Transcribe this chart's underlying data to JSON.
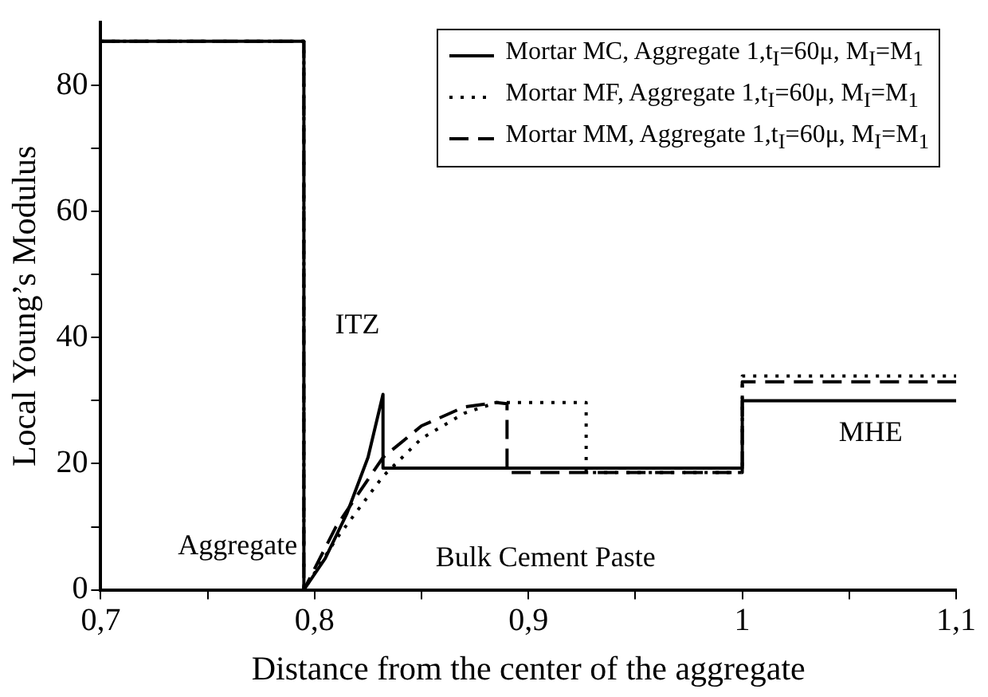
{
  "chart_data": {
    "type": "line",
    "xlabel": "Distance from the center of the aggregate",
    "ylabel": "Local Young’s Modulus",
    "xlim": [
      0.7,
      1.1
    ],
    "ylim": [
      0,
      90
    ],
    "xticks": [
      {
        "value": 0.7,
        "label": "0,7"
      },
      {
        "value": 0.75,
        "label": null
      },
      {
        "value": 0.8,
        "label": "0,8"
      },
      {
        "value": 0.85,
        "label": null
      },
      {
        "value": 0.9,
        "label": "0,9"
      },
      {
        "value": 0.95,
        "label": null
      },
      {
        "value": 1.0,
        "label": "1"
      },
      {
        "value": 1.05,
        "label": null
      },
      {
        "value": 1.1,
        "label": "1,1"
      }
    ],
    "yticks": [
      0,
      {
        "value": 10,
        "label": null
      },
      20,
      {
        "value": 30,
        "label": null
      },
      40,
      {
        "value": 50,
        "label": null
      },
      60,
      {
        "value": 70,
        "label": null
      },
      80
    ],
    "grid": false,
    "legend": "top right",
    "marker": "none",
    "series": [
      {
        "name": "Mortar MC, Aggregate 1,t$_{I}$=60μ, M$_{I}$=M$_{1}$",
        "color": "#000000",
        "line_style": "solid",
        "x": [
          0.7,
          0.795,
          0.795,
          0.805,
          0.815,
          0.825,
          0.832,
          0.832,
          1.0,
          1.0,
          1.1
        ],
        "values": [
          87,
          87,
          0,
          5,
          12,
          21,
          31,
          19.3,
          19.3,
          30,
          30
        ]
      },
      {
        "name": "Mortar MF, Aggregate 1,t$_{I}$=60μ, M$_{I}$=M$_{1}$",
        "color": "#000000",
        "line_style": "dotted",
        "x": [
          0.7,
          0.795,
          0.795,
          0.81,
          0.832,
          0.85,
          0.87,
          0.885,
          0.927,
          0.927,
          1.0,
          1.0,
          1.1
        ],
        "values": [
          87,
          87,
          0,
          8,
          18,
          24,
          28,
          29.7,
          29.7,
          18.6,
          18.6,
          33.9,
          33.9
        ]
      },
      {
        "name": "Mortar MM, Aggregate 1,t$_{I}$=60μ, M$_{I}$=M$_{1}$",
        "color": "#000000",
        "line_style": "dashed",
        "x": [
          0.7,
          0.795,
          0.795,
          0.81,
          0.832,
          0.85,
          0.87,
          0.885,
          0.89,
          0.89,
          1.0,
          1.0,
          1.1
        ],
        "values": [
          87,
          87,
          0,
          10,
          21,
          26,
          29,
          29.7,
          29.5,
          18.6,
          18.6,
          33,
          33
        ]
      }
    ],
    "annotations": [
      "Aggregate",
      "ITZ",
      "Bulk Cement Paste",
      "MHE"
    ]
  }
}
